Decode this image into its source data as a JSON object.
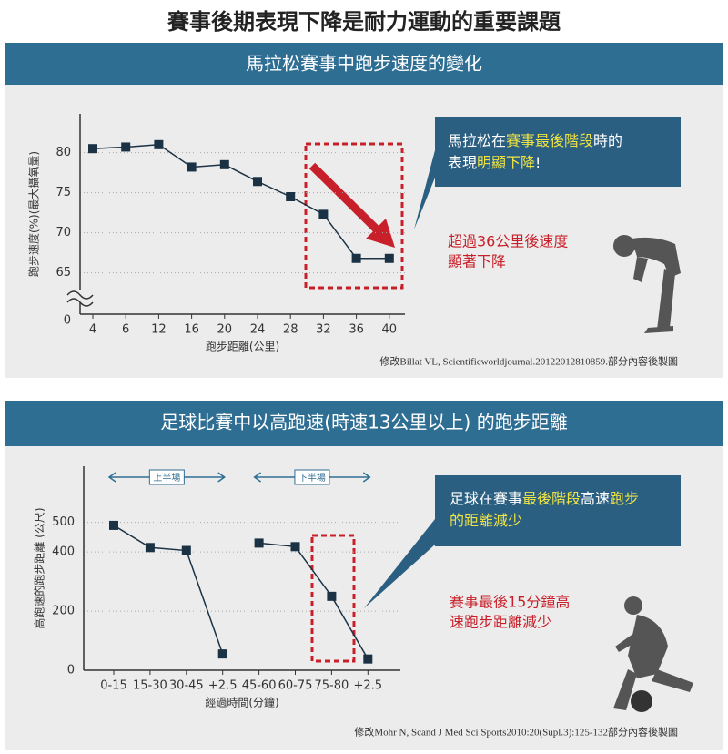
{
  "title": "賽事後期表現下降是耐力運動的重要課題",
  "chart_data": [
    {
      "type": "line",
      "title": "馬拉松賽事中跑步速度的變化",
      "categories": [
        "4",
        "6",
        "12",
        "16",
        "20",
        "24",
        "28",
        "32",
        "36",
        "40"
      ],
      "values": [
        80.5,
        80.7,
        81.0,
        78.2,
        78.5,
        76.4,
        74.5,
        72.3,
        66.8,
        66.8
      ],
      "color": "#1b3245",
      "xlabel": "跑步距離(公里)",
      "ylabel": "跑步速度(%)(最大攝氧量)",
      "ylim": [
        0,
        84
      ],
      "ybreak": [
        0,
        62
      ],
      "yticks": [
        0,
        65,
        70,
        75,
        80
      ],
      "grid": true,
      "callout": [
        [
          {
            "text": "馬拉松在"
          },
          {
            "text": "賽事最後階段",
            "color": "#f0e442"
          },
          {
            "text": "時的"
          }
        ],
        [
          {
            "text": "表現"
          },
          {
            "text": "明顯下降",
            "color": "#f0e442"
          },
          {
            "text": "!"
          }
        ]
      ],
      "annotation": [
        "超過36公里後速度",
        "顯著下降"
      ],
      "source": "修改Billat VL, Scientificworldjournal.20122012810859.部分內容後製圖"
    },
    {
      "type": "line",
      "title": "足球比賽中以高跑速(時速13公里以上) 的跑步距離",
      "categories": [
        "0-15",
        "15-30",
        "30-45",
        "+2.5",
        "45-60",
        "60-75",
        "75-80",
        "+2.5"
      ],
      "series": [
        {
          "name": "上半場",
          "color": "#1b3245",
          "values": [
            490,
            415,
            405,
            55,
            null,
            null,
            null,
            null
          ]
        },
        {
          "name": "下半場",
          "color": "#1b3245",
          "values": [
            null,
            null,
            null,
            null,
            430,
            418,
            250,
            38
          ]
        }
      ],
      "xlabel": "經過時間(分鐘)",
      "ylabel": "高跑速的跑步距離 (公尺)",
      "ylim": [
        0,
        690
      ],
      "yticks": [
        0,
        200,
        400,
        500
      ],
      "grid": true,
      "callout": [
        [
          {
            "text": "足球在賽事"
          },
          {
            "text": "最後階段",
            "color": "#f0e442"
          },
          {
            "text": "高速"
          },
          {
            "text": "跑步",
            "color": "#f0e442"
          }
        ],
        [
          {
            "text": "的距離減少",
            "color": "#f0e442"
          }
        ]
      ],
      "annotation": [
        "賽事最後15分鐘高",
        "速跑步距離減少"
      ],
      "source": "修改Mohr N, Scand J Med Sci Sports2010:20(Supl.3):125-132部分內容後製圖"
    }
  ]
}
